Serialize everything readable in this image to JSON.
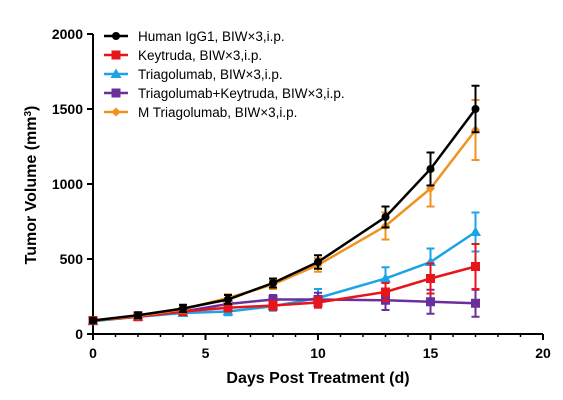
{
  "chart_data": {
    "type": "line",
    "xlabel": "Days Post Treatment (d)",
    "ylabel_main": "Tumor Volume (mm",
    "ylabel_sup": "3",
    "ylabel_close": ")",
    "xlim": [
      0,
      20
    ],
    "ylim": [
      0,
      2000
    ],
    "xticks": [
      0,
      5,
      10,
      15,
      20
    ],
    "yticks": [
      0,
      500,
      1000,
      1500,
      2000
    ],
    "grid": false,
    "legend_position": "top-left",
    "x": [
      0,
      2,
      4,
      6,
      8,
      10,
      13,
      15,
      17
    ],
    "series": [
      {
        "name": "Human IgG1, BIW×3,i.p.",
        "color": "#000000",
        "marker": "circle",
        "values": [
          90,
          125,
          170,
          230,
          340,
          480,
          780,
          1100,
          1500
        ],
        "errors": [
          15,
          20,
          25,
          30,
          30,
          45,
          70,
          110,
          155
        ]
      },
      {
        "name": "Keytruda, BIW×3,i.p.",
        "color": "#e8141b",
        "marker": "square",
        "values": [
          90,
          115,
          150,
          175,
          190,
          210,
          280,
          370,
          450
        ],
        "errors": [
          15,
          15,
          20,
          25,
          30,
          35,
          60,
          100,
          150
        ]
      },
      {
        "name": "Triagolumab, BIW×3,i.p.",
        "color": "#1ca3e6",
        "marker": "triangle",
        "values": [
          85,
          115,
          140,
          150,
          185,
          240,
          370,
          480,
          680
        ],
        "errors": [
          15,
          15,
          20,
          25,
          30,
          60,
          75,
          90,
          130
        ]
      },
      {
        "name": "Triagolumab+Keytruda, BIW×3,i.p.",
        "color": "#6a2f9b",
        "marker": "square",
        "values": [
          90,
          120,
          150,
          200,
          230,
          230,
          225,
          215,
          205
        ],
        "errors": [
          15,
          15,
          20,
          25,
          30,
          45,
          65,
          80,
          90
        ]
      },
      {
        "name": "M Triagolumab, BIW×3,i.p.",
        "color": "#f0921f",
        "marker": "diamond",
        "values": [
          90,
          120,
          165,
          240,
          330,
          460,
          720,
          970,
          1360
        ],
        "errors": [
          15,
          15,
          25,
          25,
          30,
          45,
          90,
          120,
          200
        ]
      }
    ]
  }
}
